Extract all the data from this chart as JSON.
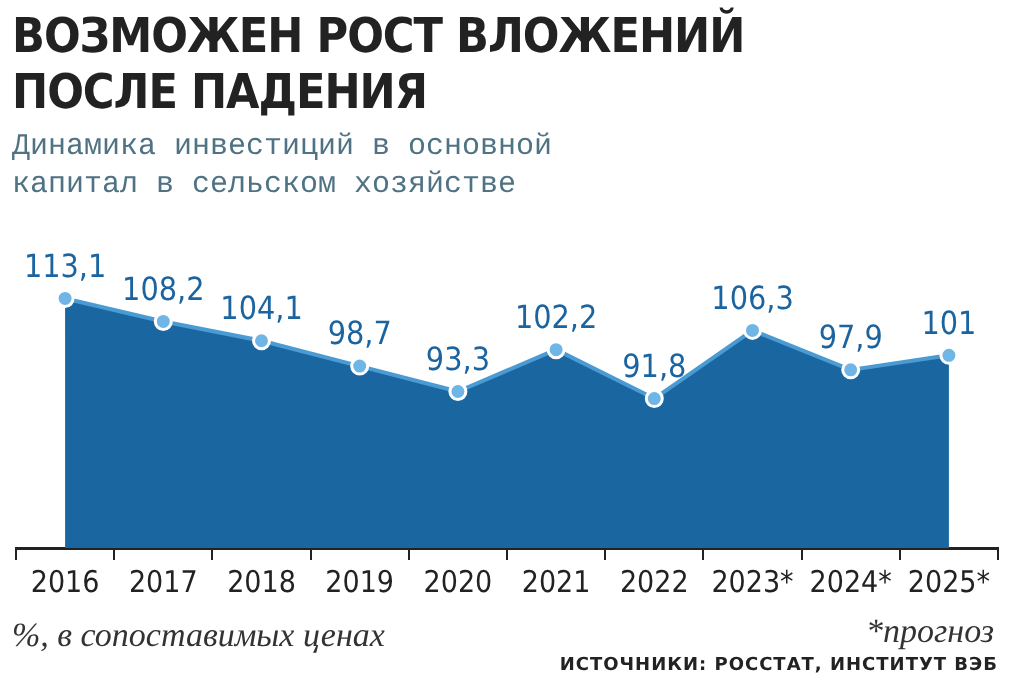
{
  "chart_data": {
    "type": "area",
    "title": "ВОЗМОЖЕН РОСТ ВЛОЖЕНИЙ\nПОСЛЕ ПАДЕНИЯ",
    "subtitle": "Динамика инвестиций в основной\nкапитал в сельском хозяйстве",
    "categories": [
      "2016",
      "2017",
      "2018",
      "2019",
      "2020",
      "2021",
      "2022",
      "2023*",
      "2024*",
      "2025*"
    ],
    "series": [
      {
        "color": "#1a66a0",
        "values": [
          113.1,
          108.2,
          104.1,
          98.7,
          93.3,
          102.2,
          91.8,
          106.3,
          97.9,
          101
        ],
        "value_labels": [
          "113,1",
          "108,2",
          "104,1",
          "98,7",
          "93,3",
          "102,2",
          "91,8",
          "106,3",
          "97,9",
          "101"
        ]
      }
    ],
    "marker": "circle",
    "legend": false,
    "tick_labels": "x",
    "annotations": [
      "%, в сопоставимых ценах",
      "*прогноз",
      "ИСТОЧНИКИ: РОССТАТ, ИНСТИТУТ ВЭБ"
    ]
  }
}
